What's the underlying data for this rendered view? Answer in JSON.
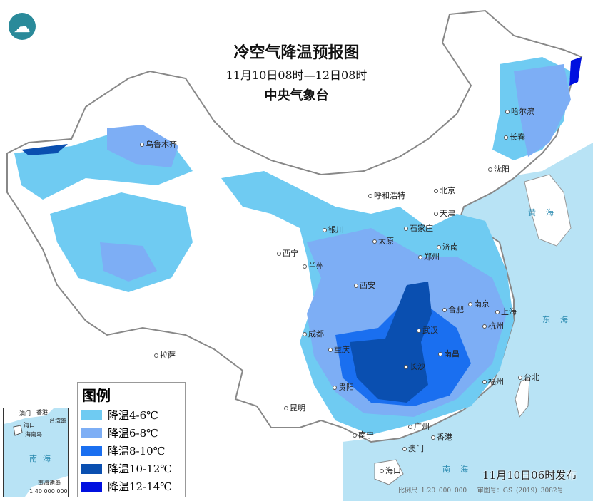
{
  "header": {
    "title": "冷空气降温预报图",
    "period": "11月10日08时—12日08时",
    "issuer": "中央气象台",
    "logo_icon": "cma-logo-icon"
  },
  "legend": {
    "title": "图例",
    "items": [
      {
        "label": "降温4-6℃",
        "color": "#6fcbf2"
      },
      {
        "label": "降温6-8℃",
        "color": "#7daef5"
      },
      {
        "label": "降温8-10℃",
        "color": "#1a6ff0"
      },
      {
        "label": "降温10-12℃",
        "color": "#0a4fb0"
      },
      {
        "label": "降温12-14℃",
        "color": "#0010e0"
      }
    ]
  },
  "cities": [
    "乌鲁木齐",
    "哈尔滨",
    "长春",
    "沈阳",
    "呼和浩特",
    "北京",
    "天津",
    "石家庄",
    "太原",
    "银川",
    "济南",
    "西宁",
    "兰州",
    "郑州",
    "西安",
    "合肥",
    "南京",
    "上海",
    "武汉",
    "杭州",
    "成都",
    "重庆",
    "南昌",
    "长沙",
    "拉萨",
    "贵阳",
    "福州",
    "台北",
    "昆明",
    "广州",
    "南宁",
    "香港",
    "澳门",
    "海口"
  ],
  "seas": {
    "yellow": "黄海",
    "east": "东海",
    "south": "南海",
    "hainan": "海南岛"
  },
  "inset": {
    "macau": "澳门",
    "hongkong": "香港",
    "taiwan": "台湾岛",
    "haikou": "海口",
    "hainan": "海南岛",
    "sea": "南海",
    "islands": "南海诸岛",
    "scale": "1:40 000 000"
  },
  "footer": {
    "release": "11月10日06时发布",
    "scale": "比例尺 1:20 000 000",
    "approval": "审图号：GS (2019) 3082号"
  },
  "colors": {
    "sea": "#b8e3f5",
    "land": "#ffffff",
    "border": "#888888"
  }
}
